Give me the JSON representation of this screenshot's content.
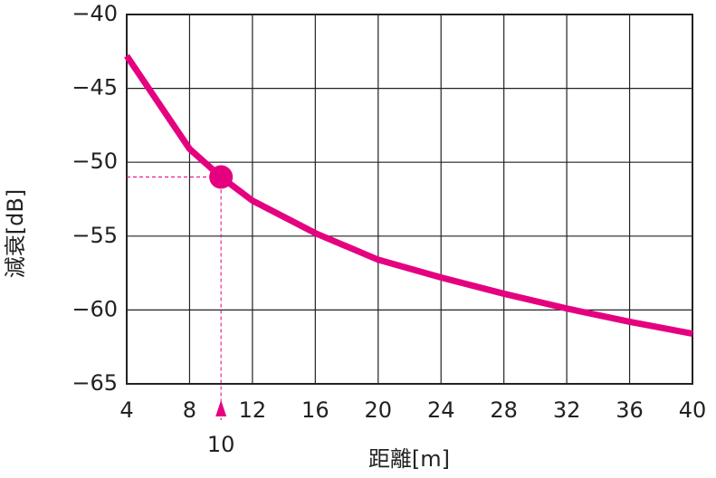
{
  "chart_data": {
    "type": "line",
    "x_label": "距離[m]",
    "y_label": "減衰[dB]",
    "x": [
      4,
      8,
      10,
      12,
      16,
      20,
      24,
      28,
      32,
      36,
      40
    ],
    "series": [
      {
        "color": "#e5007f",
        "values": [
          -42.8,
          -49.1,
          -51,
          -52.6,
          -54.8,
          -56.6,
          -57.8,
          -58.9,
          -59.9,
          -60.8,
          -61.6
        ]
      }
    ],
    "highlight": {
      "x": 10,
      "y": -51,
      "label": "10"
    },
    "xlim": [
      4,
      40
    ],
    "xticks": [
      4,
      8,
      12,
      16,
      20,
      24,
      28,
      32,
      36,
      40
    ],
    "ylim": [
      -65,
      -40
    ],
    "yticks": [
      {
        "value": -40,
        "label": "−40"
      },
      {
        "value": -45,
        "label": "−45"
      },
      {
        "value": -50,
        "label": "−50"
      },
      {
        "value": -55,
        "label": "−55"
      },
      {
        "value": -60,
        "label": "−60"
      },
      {
        "value": -65,
        "label": "−65"
      }
    ],
    "grid": true
  }
}
